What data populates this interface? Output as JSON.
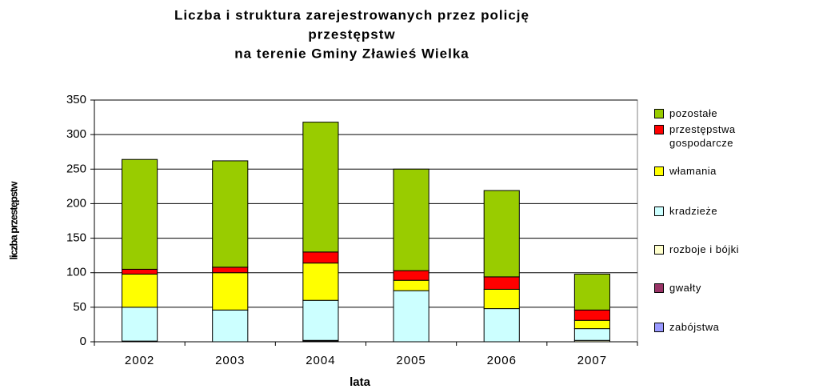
{
  "chart_data": {
    "type": "stacked_bar",
    "title": [
      "Liczba i struktura zarejestrowanych przez policję",
      "przestępstw",
      "na terenie Gminy Zławieś Wielka"
    ],
    "x_label": "lata",
    "y_label": "liczba przestępstw",
    "categories": [
      "2002",
      "2003",
      "2004",
      "2005",
      "2006",
      "2007"
    ],
    "series": [
      {
        "name": "zabójstwa",
        "color": "#9999ff",
        "values": [
          0,
          0,
          0,
          0,
          0,
          0
        ]
      },
      {
        "name": "gwałty",
        "color": "#993366",
        "values": [
          0,
          0,
          1,
          0,
          0,
          0
        ]
      },
      {
        "name": "rozboje i bójki",
        "color": "#ffffcc",
        "values": [
          1,
          0,
          1,
          0,
          0,
          2
        ]
      },
      {
        "name": "kradzieże",
        "color": "#ccffff",
        "values": [
          49,
          46,
          58,
          74,
          48,
          17
        ]
      },
      {
        "name": "włamania",
        "color": "#ffff00",
        "values": [
          48,
          54,
          54,
          15,
          28,
          12
        ]
      },
      {
        "name": "przestępstwa gospodarcze",
        "color": "#ff0000",
        "values": [
          7,
          8,
          16,
          14,
          18,
          15
        ]
      },
      {
        "name": "pozostałe",
        "color": "#99cc00",
        "values": [
          159,
          154,
          188,
          147,
          125,
          52
        ]
      }
    ],
    "ylim": [
      0,
      350
    ],
    "yticks": [
      0,
      50,
      100,
      150,
      200,
      250,
      300,
      350
    ],
    "grid": true,
    "legend": "right"
  }
}
